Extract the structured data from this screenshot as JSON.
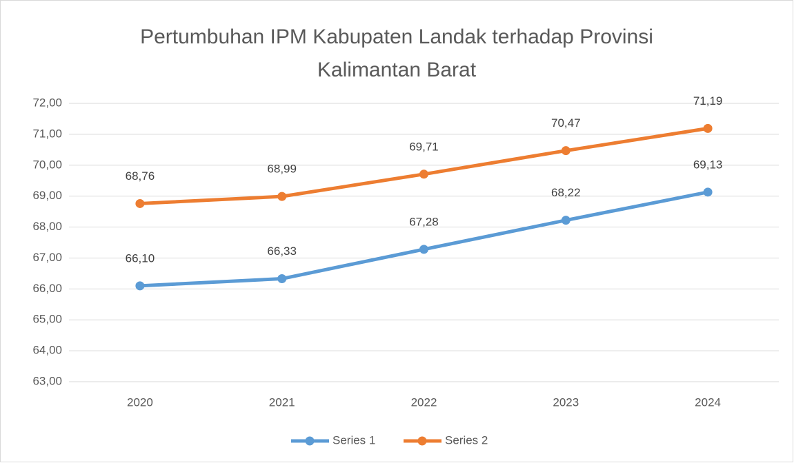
{
  "chart_data": {
    "type": "line",
    "title": "Pertumbuhan IPM Kabupaten Landak terhadap Provinsi Kalimantan Barat",
    "categories": [
      "2020",
      "2021",
      "2022",
      "2023",
      "2024"
    ],
    "series": [
      {
        "name": "Series 1",
        "color": "#5b9bd5",
        "values": [
          66.1,
          66.33,
          67.28,
          68.22,
          69.13
        ],
        "value_labels": [
          "66,10",
          "66,33",
          "67,28",
          "68,22",
          "69,13"
        ]
      },
      {
        "name": "Series 2",
        "color": "#ed7d31",
        "values": [
          68.76,
          68.99,
          69.71,
          70.47,
          71.19
        ],
        "value_labels": [
          "68,76",
          "68,99",
          "69,71",
          "70,47",
          "71,19"
        ]
      }
    ],
    "ylim": [
      63,
      72
    ],
    "yticks": [
      {
        "value": 63,
        "label": "63,00"
      },
      {
        "value": 64,
        "label": "64,00"
      },
      {
        "value": 65,
        "label": "65,00"
      },
      {
        "value": 66,
        "label": "66,00"
      },
      {
        "value": 67,
        "label": "67,00"
      },
      {
        "value": 68,
        "label": "68,00"
      },
      {
        "value": 69,
        "label": "69,00"
      },
      {
        "value": 70,
        "label": "70,00"
      },
      {
        "value": 71,
        "label": "71,00"
      },
      {
        "value": 72,
        "label": "72,00"
      }
    ],
    "grid": true,
    "legend": "bottom"
  }
}
